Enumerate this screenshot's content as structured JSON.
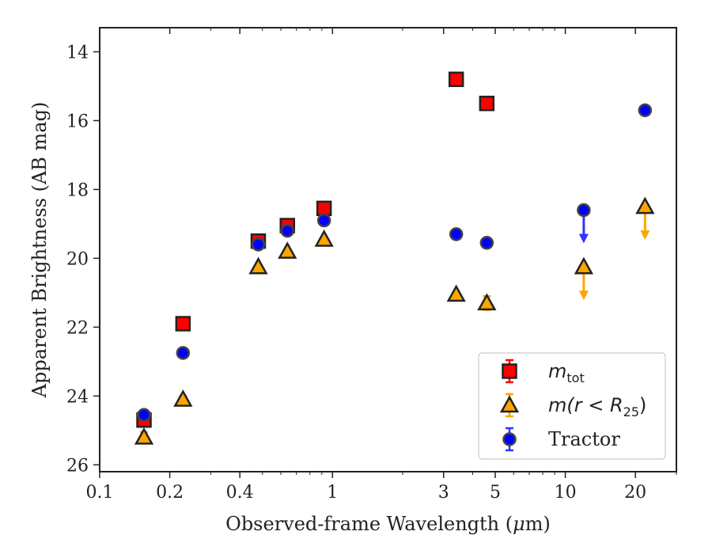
{
  "chart_data": {
    "type": "scatter",
    "x_scale": "log",
    "y_inverted": true,
    "xlim": [
      0.1,
      30
    ],
    "ylim": [
      26.2,
      13.3
    ],
    "xlabel_pre": "Observed-frame Wavelength (",
    "xlabel_mu": "μ",
    "xlabel_post": "m)",
    "ylabel": "Apparent Brightness (AB mag)",
    "x_ticks": [
      0.1,
      0.2,
      0.4,
      1,
      3,
      5,
      10,
      20
    ],
    "x_tick_labels": [
      "0.1",
      "0.2",
      "0.4",
      "1",
      "3",
      "5",
      "10",
      "20"
    ],
    "x_minor_ticks": [
      0.3,
      0.5,
      0.6,
      0.7,
      0.8,
      0.9,
      2,
      4,
      6,
      7,
      8,
      9,
      30
    ],
    "y_ticks": [
      14,
      16,
      18,
      20,
      22,
      24,
      26
    ],
    "y_tick_labels": [
      "14",
      "16",
      "18",
      "20",
      "22",
      "24",
      "26"
    ],
    "legend_position": "lower-right",
    "series": [
      {
        "key": "mtot",
        "legend_main": "m",
        "legend_sub": "tot",
        "marker": "square",
        "color": "#ff0000",
        "errcolor": "#ff0000",
        "points": [
          {
            "x": 0.155,
            "y": 24.7,
            "err": 0.15
          },
          {
            "x": 0.228,
            "y": 21.9,
            "err": 0.1
          },
          {
            "x": 0.48,
            "y": 19.5,
            "err": 0.05
          },
          {
            "x": 0.64,
            "y": 19.05,
            "err": 0.05
          },
          {
            "x": 0.92,
            "y": 18.55,
            "err": 0.05
          },
          {
            "x": 3.4,
            "y": 14.8,
            "err": 0.05
          },
          {
            "x": 4.6,
            "y": 15.5,
            "err": 0.05
          }
        ]
      },
      {
        "key": "mr25",
        "legend_main": "m(r < R",
        "legend_sub": "25",
        "legend_close": ")",
        "marker": "triangle",
        "color": "#ffa500",
        "errcolor": "#ffa500",
        "points": [
          {
            "x": 0.155,
            "y": 25.2,
            "err": 0.15
          },
          {
            "x": 0.228,
            "y": 24.1,
            "err": 0.1
          },
          {
            "x": 0.48,
            "y": 20.25,
            "err": 0.05
          },
          {
            "x": 0.64,
            "y": 19.8,
            "err": 0.05
          },
          {
            "x": 0.92,
            "y": 19.45,
            "err": 0.05
          },
          {
            "x": 3.4,
            "y": 21.05,
            "err": 0.05
          },
          {
            "x": 4.6,
            "y": 21.3,
            "err": 0.2
          },
          {
            "x": 12,
            "y": 20.25,
            "upper_limit": true
          },
          {
            "x": 22,
            "y": 18.5,
            "upper_limit": true
          }
        ]
      },
      {
        "key": "tractor",
        "legend_main": "Tractor",
        "marker": "circle",
        "color": "#0000ff",
        "errcolor": "#3333ff",
        "points": [
          {
            "x": 0.155,
            "y": 24.55,
            "err": 0.1
          },
          {
            "x": 0.228,
            "y": 22.75,
            "err": 0.05
          },
          {
            "x": 0.48,
            "y": 19.6,
            "err": 0.05
          },
          {
            "x": 0.64,
            "y": 19.2,
            "err": 0.05
          },
          {
            "x": 0.92,
            "y": 18.9,
            "err": 0.05
          },
          {
            "x": 3.4,
            "y": 19.3,
            "err": 0.05
          },
          {
            "x": 4.6,
            "y": 19.55,
            "err": 0.05
          },
          {
            "x": 12,
            "y": 18.6,
            "upper_limit": true
          },
          {
            "x": 22,
            "y": 15.7,
            "err": 0.05
          }
        ]
      }
    ]
  }
}
